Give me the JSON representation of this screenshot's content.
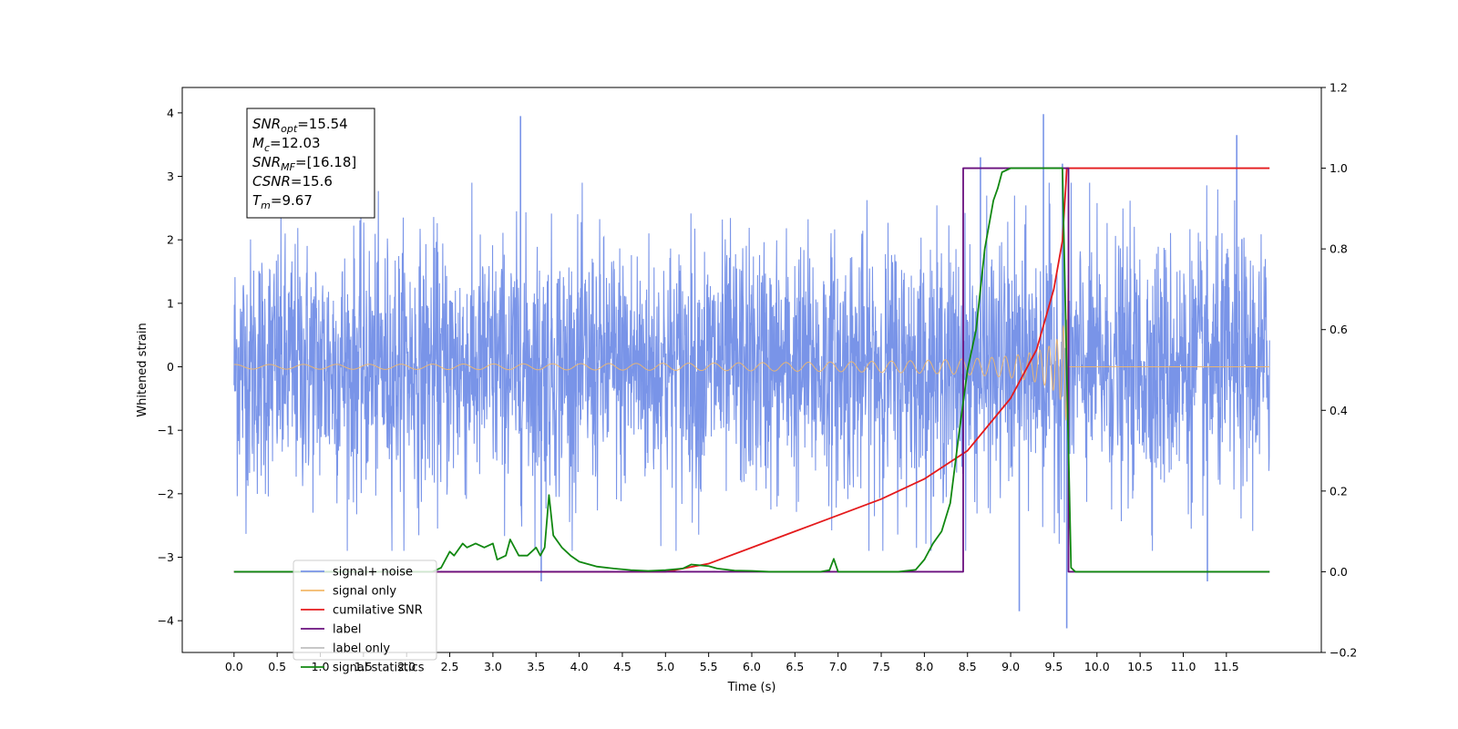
{
  "chart_data": {
    "type": "line",
    "xlabel": "Time (s)",
    "ylabel": "Whitened strain",
    "xlim": [
      -0.6,
      12.6
    ],
    "ylim": [
      -4.5,
      4.4
    ],
    "y2lim": [
      -0.2,
      1.2
    ],
    "x_ticks": [
      0.0,
      0.5,
      1.0,
      1.5,
      2.0,
      2.5,
      3.0,
      3.5,
      4.0,
      4.5,
      5.0,
      5.5,
      6.0,
      6.5,
      7.0,
      7.5,
      8.0,
      8.5,
      9.0,
      9.5,
      10.0,
      10.5,
      11.0,
      11.5
    ],
    "x_tick_labels": [
      "0.0",
      "0.5",
      "1.0",
      "1.5",
      "2.0",
      "2.5",
      "3.0",
      "3.5",
      "4.0",
      "4.5",
      "5.0",
      "5.5",
      "6.0",
      "6.5",
      "7.0",
      "7.5",
      "8.0",
      "8.5",
      "9.0",
      "9.5",
      "10.0",
      "10.5",
      "11.0",
      "11.5"
    ],
    "y_ticks": [
      -4,
      -3,
      -2,
      -1,
      0,
      1,
      2,
      3,
      4
    ],
    "y_tick_labels": [
      "−4",
      "−3",
      "−2",
      "−1",
      "0",
      "1",
      "2",
      "3",
      "4"
    ],
    "y2_ticks": [
      -0.2,
      0.0,
      0.2,
      0.4,
      0.6,
      0.8,
      1.0,
      1.2
    ],
    "y2_tick_labels": [
      "−0.2",
      "0.0",
      "0.2",
      "0.4",
      "0.6",
      "0.8",
      "1.0",
      "1.2"
    ],
    "grid": false,
    "legend_position": "lower-left",
    "annotation": {
      "lines": [
        {
          "main": "SNR",
          "sub": "opt",
          "value": "=15.54"
        },
        {
          "main": "M",
          "sub": "c",
          "value": "=12.03"
        },
        {
          "main": "SNR",
          "sub": "MF",
          "value": "=[16.18]"
        },
        {
          "main": "CSNR",
          "sub": "",
          "value": "=15.6"
        },
        {
          "main": "T",
          "sub": "m",
          "value": "=9.67"
        }
      ]
    },
    "series": [
      {
        "name": "signal+ noise",
        "color": "#7994e8",
        "axis": "left",
        "kind": "noise",
        "x_range": [
          0.0,
          12.0
        ],
        "amplitude": 1.0,
        "x_peaks": [
          [
            3.32,
            3.95
          ],
          [
            9.38,
            3.98
          ],
          [
            11.62,
            3.65
          ],
          [
            8.65,
            3.3
          ],
          [
            9.6,
            3.2
          ],
          [
            3.56,
            -3.38
          ],
          [
            9.65,
            -4.12
          ],
          [
            9.1,
            -3.85
          ],
          [
            11.28,
            -3.38
          ]
        ]
      },
      {
        "name": "signal only",
        "color": "#f2b86a",
        "axis": "left",
        "kind": "chirp",
        "t_merger": 9.67,
        "x_range": [
          0.0,
          12.0
        ]
      },
      {
        "name": "cumilative SNR",
        "color": "#e41a1c",
        "axis": "right",
        "x": [
          0.0,
          5.0,
          5.5,
          6.0,
          6.5,
          7.0,
          7.5,
          8.0,
          8.5,
          9.0,
          9.3,
          9.5,
          9.6,
          9.64,
          9.65,
          12.0
        ],
        "y": [
          0.0,
          0.0,
          0.02,
          0.06,
          0.1,
          0.14,
          0.18,
          0.23,
          0.3,
          0.43,
          0.55,
          0.7,
          0.82,
          0.96,
          1.0,
          1.0
        ]
      },
      {
        "name": "label",
        "color": "#6a0f7e",
        "axis": "right",
        "x": [
          0.0,
          8.45,
          8.45,
          9.67,
          9.67,
          12.0
        ],
        "y": [
          0.0,
          0.0,
          1.0,
          1.0,
          0.0,
          0.0
        ]
      },
      {
        "name": "label only",
        "color": "#bfbfbf",
        "axis": "right",
        "x": [],
        "y": []
      },
      {
        "name": "signal statistics",
        "color": "#118811",
        "axis": "right",
        "x": [
          0.0,
          2.3,
          2.4,
          2.5,
          2.55,
          2.65,
          2.7,
          2.8,
          2.9,
          3.0,
          3.05,
          3.15,
          3.2,
          3.3,
          3.4,
          3.5,
          3.55,
          3.6,
          3.65,
          3.7,
          3.8,
          3.9,
          4.0,
          4.2,
          4.4,
          4.6,
          4.8,
          5.0,
          5.2,
          5.3,
          5.5,
          5.6,
          5.8,
          6.0,
          6.2,
          6.8,
          6.9,
          6.95,
          7.0,
          7.7,
          7.9,
          8.0,
          8.1,
          8.2,
          8.3,
          8.4,
          8.5,
          8.6,
          8.7,
          8.8,
          8.85,
          8.9,
          9.0,
          9.1,
          9.2,
          9.3,
          9.5,
          9.6,
          9.65,
          9.7,
          9.75,
          12.0
        ],
        "y": [
          0.0,
          0.0,
          0.01,
          0.05,
          0.04,
          0.07,
          0.06,
          0.07,
          0.06,
          0.07,
          0.03,
          0.04,
          0.08,
          0.04,
          0.04,
          0.06,
          0.04,
          0.06,
          0.19,
          0.09,
          0.06,
          0.04,
          0.025,
          0.013,
          0.008,
          0.004,
          0.002,
          0.004,
          0.008,
          0.018,
          0.014,
          0.008,
          0.003,
          0.002,
          0.0,
          0.0,
          0.004,
          0.032,
          0.0,
          0.0,
          0.005,
          0.03,
          0.07,
          0.1,
          0.17,
          0.34,
          0.5,
          0.6,
          0.8,
          0.92,
          0.95,
          0.99,
          1.0,
          1.0,
          1.0,
          1.0,
          1.0,
          1.0,
          0.5,
          0.01,
          0.0,
          0.0
        ]
      }
    ]
  }
}
